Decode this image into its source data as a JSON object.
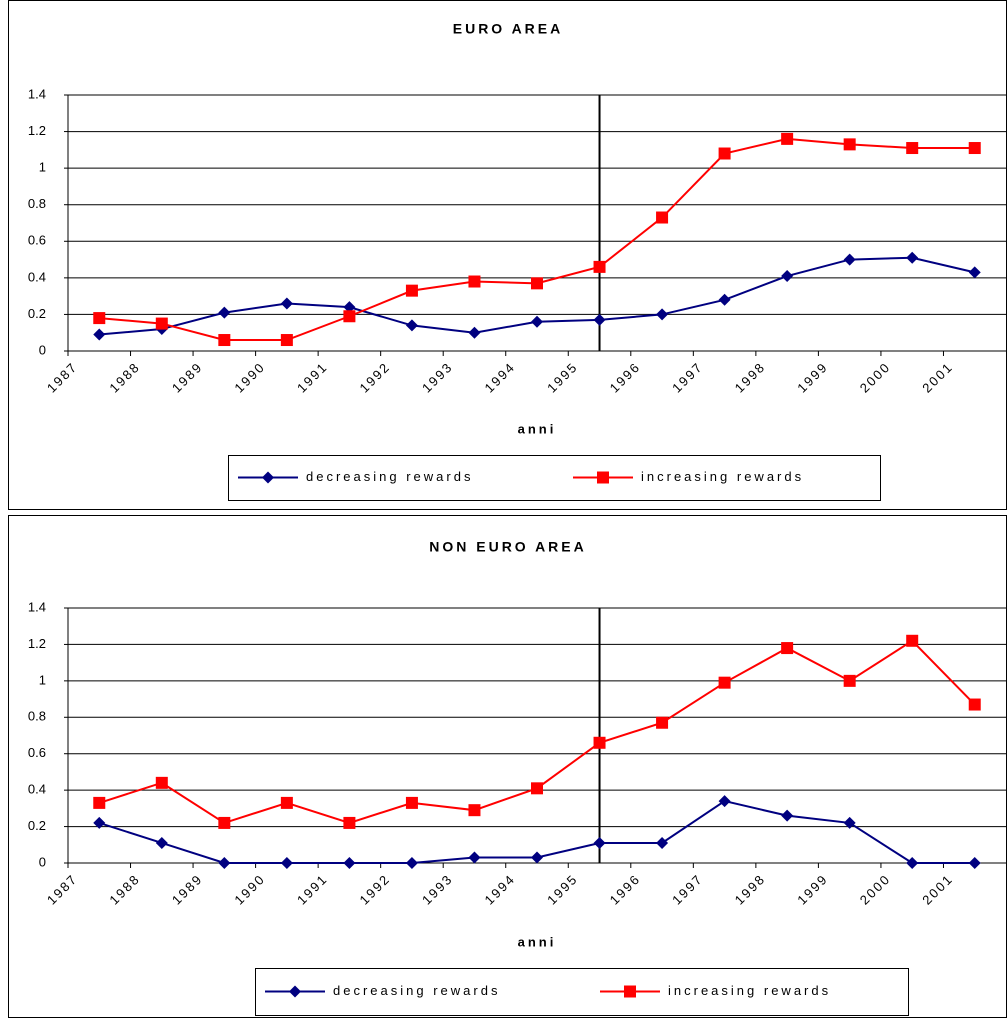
{
  "chart_data": [
    {
      "type": "line",
      "title": "EURO AREA",
      "x_label": "anni",
      "categories": [
        "1987",
        "1988",
        "1989",
        "1990",
        "1991",
        "1992",
        "1993",
        "1994",
        "1995",
        "1996",
        "1997",
        "1998",
        "1999",
        "2000",
        "2001"
      ],
      "series": [
        {
          "name": "decreasing rewards",
          "color": "#000080",
          "marker": "diamond",
          "values": [
            0.09,
            0.12,
            0.21,
            0.26,
            0.24,
            0.14,
            0.1,
            0.16,
            0.17,
            0.2,
            0.28,
            0.41,
            0.5,
            0.51,
            0.43
          ]
        },
        {
          "name": "increasing rewards",
          "color": "#ff0000",
          "marker": "square",
          "values": [
            0.18,
            0.15,
            0.06,
            0.06,
            0.19,
            0.33,
            0.38,
            0.37,
            0.46,
            0.73,
            1.08,
            1.16,
            1.13,
            1.11,
            1.11
          ]
        }
      ],
      "ylim": [
        0,
        1.4
      ],
      "yticks": [
        0,
        0.2,
        0.4,
        0.6,
        0.8,
        1,
        1.2,
        1.4
      ],
      "grid": true,
      "vline": "1995",
      "legend": "bottom"
    },
    {
      "type": "line",
      "title": "NON EURO AREA",
      "x_label": "anni",
      "categories": [
        "1987",
        "1988",
        "1989",
        "1990",
        "1991",
        "1992",
        "1993",
        "1994",
        "1995",
        "1996",
        "1997",
        "1998",
        "1999",
        "2000",
        "2001"
      ],
      "series": [
        {
          "name": "decreasing rewards",
          "color": "#000080",
          "marker": "diamond",
          "values": [
            0.22,
            0.11,
            0,
            0,
            0,
            0,
            0.03,
            0.03,
            0.11,
            0.11,
            0.34,
            0.26,
            0.22,
            0,
            0
          ]
        },
        {
          "name": "increasing rewards",
          "color": "#ff0000",
          "marker": "square",
          "values": [
            0.33,
            0.44,
            0.22,
            0.33,
            0.22,
            0.33,
            0.29,
            0.41,
            0.66,
            0.77,
            0.99,
            1.18,
            1.0,
            1.22,
            0.87
          ]
        }
      ],
      "ylim": [
        0,
        1.4
      ],
      "yticks": [
        0,
        0.2,
        0.4,
        0.6,
        0.8,
        1,
        1.2,
        1.4
      ],
      "grid": true,
      "vline": "1995",
      "legend": "bottom"
    }
  ]
}
